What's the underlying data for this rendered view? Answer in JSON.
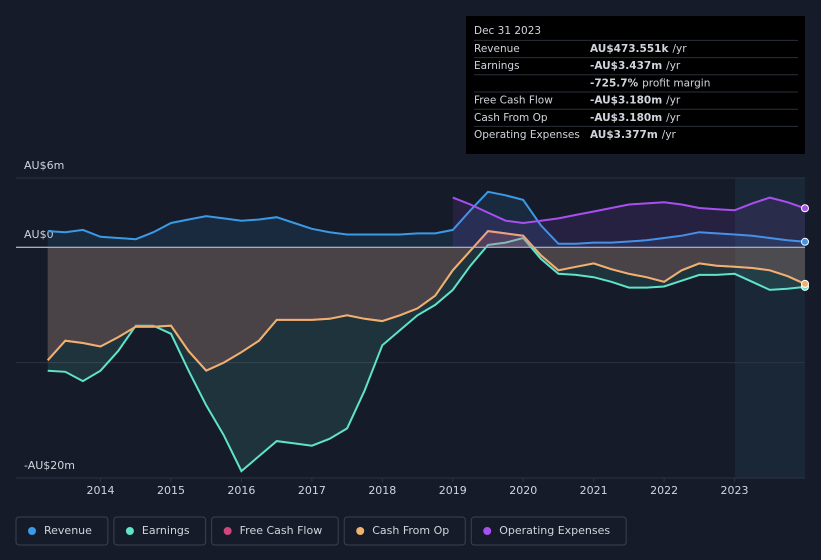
{
  "chart_data": {
    "type": "line",
    "x": [
      2013.25,
      2013.5,
      2013.75,
      2014,
      2014.25,
      2014.5,
      2014.75,
      2015,
      2015.25,
      2015.5,
      2015.75,
      2016,
      2016.25,
      2016.5,
      2016.75,
      2017,
      2017.25,
      2017.5,
      2017.75,
      2018,
      2018.25,
      2018.5,
      2018.75,
      2019,
      2019.25,
      2019.5,
      2019.75,
      2020,
      2020.25,
      2020.5,
      2020.75,
      2021,
      2021.25,
      2021.5,
      2021.75,
      2022,
      2022.25,
      2022.5,
      2022.75,
      2023,
      2023.25,
      2023.5,
      2023.75,
      2024
    ],
    "xlim": [
      2012.8,
      2024.0
    ],
    "xticks": [
      2014,
      2015,
      2016,
      2017,
      2018,
      2019,
      2020,
      2021,
      2022,
      2023
    ],
    "ylim": [
      -20,
      6
    ],
    "yticks": [
      {
        "value": 6,
        "label": "AU$6m"
      },
      {
        "value": 0,
        "label": "AU$0"
      },
      {
        "value": -10,
        "label": null
      },
      {
        "value": -20,
        "label": "-AU$20m"
      }
    ],
    "grid": true,
    "series": [
      {
        "name": "Revenue",
        "color": "#3a9ae6",
        "values": [
          1.4,
          1.3,
          1.5,
          0.9,
          0.8,
          0.7,
          1.3,
          2.1,
          2.4,
          2.7,
          2.5,
          2.3,
          2.4,
          2.6,
          2.1,
          1.6,
          1.3,
          1.1,
          1.1,
          1.1,
          1.1,
          1.2,
          1.2,
          1.5,
          3.2,
          4.8,
          4.5,
          4.1,
          1.9,
          0.3,
          0.3,
          0.4,
          0.4,
          0.5,
          0.6,
          0.8,
          1.0,
          1.3,
          1.2,
          1.1,
          1.0,
          0.8,
          0.6,
          0.473551
        ]
      },
      {
        "name": "Earnings",
        "color": "#5fe3c9",
        "values": [
          -10.7,
          -10.8,
          -11.6,
          -10.7,
          -9.0,
          -6.8,
          -6.8,
          -7.5,
          -10.7,
          -13.7,
          -16.3,
          -19.4,
          -18.1,
          -16.8,
          -17.0,
          -17.2,
          -16.6,
          -15.7,
          -12.4,
          -8.5,
          -7.2,
          -5.9,
          -5.0,
          -3.7,
          -1.6,
          0.2,
          0.4,
          0.8,
          -1.0,
          -2.3,
          -2.4,
          -2.6,
          -3.0,
          -3.5,
          -3.5,
          -3.4,
          -2.9,
          -2.4,
          -2.4,
          -2.3,
          -3.0,
          -3.7,
          -3.6,
          -3.437
        ]
      },
      {
        "name": "Free Cash Flow",
        "color": "#d0457b",
        "values": [
          -9.8,
          -8.1,
          -8.3,
          -8.6,
          -7.8,
          -6.9,
          -6.9,
          -6.8,
          -9.0,
          -10.7,
          -10.0,
          -9.1,
          -8.1,
          -6.3,
          -6.3,
          -6.3,
          -6.2,
          -5.9,
          -6.2,
          -6.4,
          -5.9,
          -5.3,
          -4.2,
          -2.0,
          -0.3,
          1.4,
          1.2,
          1.0,
          -0.7,
          -2.0,
          -1.7,
          -1.4,
          -1.9,
          -2.3,
          -2.6,
          -3.0,
          -2.0,
          -1.4,
          -1.6,
          -1.7,
          -1.8,
          -2.0,
          -2.5,
          -3.18
        ]
      },
      {
        "name": "Cash From Op",
        "color": "#eeb26f",
        "values": [
          -9.8,
          -8.1,
          -8.3,
          -8.6,
          -7.8,
          -6.9,
          -6.9,
          -6.8,
          -9.0,
          -10.7,
          -10.0,
          -9.1,
          -8.1,
          -6.3,
          -6.3,
          -6.3,
          -6.2,
          -5.9,
          -6.2,
          -6.4,
          -5.9,
          -5.3,
          -4.2,
          -2.0,
          -0.3,
          1.4,
          1.2,
          1.0,
          -0.7,
          -2.0,
          -1.7,
          -1.4,
          -1.9,
          -2.3,
          -2.6,
          -3.0,
          -2.0,
          -1.4,
          -1.6,
          -1.7,
          -1.8,
          -2.0,
          -2.5,
          -3.18
        ]
      },
      {
        "name": "Operating Expenses",
        "color": "#a84ff0",
        "values": [
          null,
          null,
          null,
          null,
          null,
          null,
          null,
          null,
          null,
          null,
          null,
          null,
          null,
          null,
          null,
          null,
          null,
          null,
          null,
          null,
          null,
          null,
          null,
          4.3,
          3.7,
          3.0,
          2.3,
          2.1,
          2.3,
          2.5,
          2.8,
          3.1,
          3.4,
          3.7,
          3.8,
          3.9,
          3.7,
          3.4,
          3.3,
          3.2,
          3.8,
          4.3,
          3.9,
          3.377
        ]
      }
    ]
  },
  "tooltip": {
    "date": "Dec 31 2023",
    "rows": [
      {
        "label": "Revenue",
        "value": "AU$473.551k",
        "unit": "/yr",
        "color": "#3a9ae6"
      },
      {
        "label": "Earnings",
        "value": "-AU$3.437m",
        "unit": "/yr",
        "color": "#e5484d"
      },
      {
        "label": null,
        "value": "-725.7%",
        "unit": "profit margin",
        "color": "#e5484d"
      },
      {
        "label": "Free Cash Flow",
        "value": "-AU$3.180m",
        "unit": "/yr",
        "color": "#e5484d"
      },
      {
        "label": "Cash From Op",
        "value": "-AU$3.180m",
        "unit": "/yr",
        "color": "#e5484d"
      },
      {
        "label": "Operating Expenses",
        "value": "AU$3.377m",
        "unit": "/yr",
        "color": "#a84ff0"
      }
    ]
  }
}
